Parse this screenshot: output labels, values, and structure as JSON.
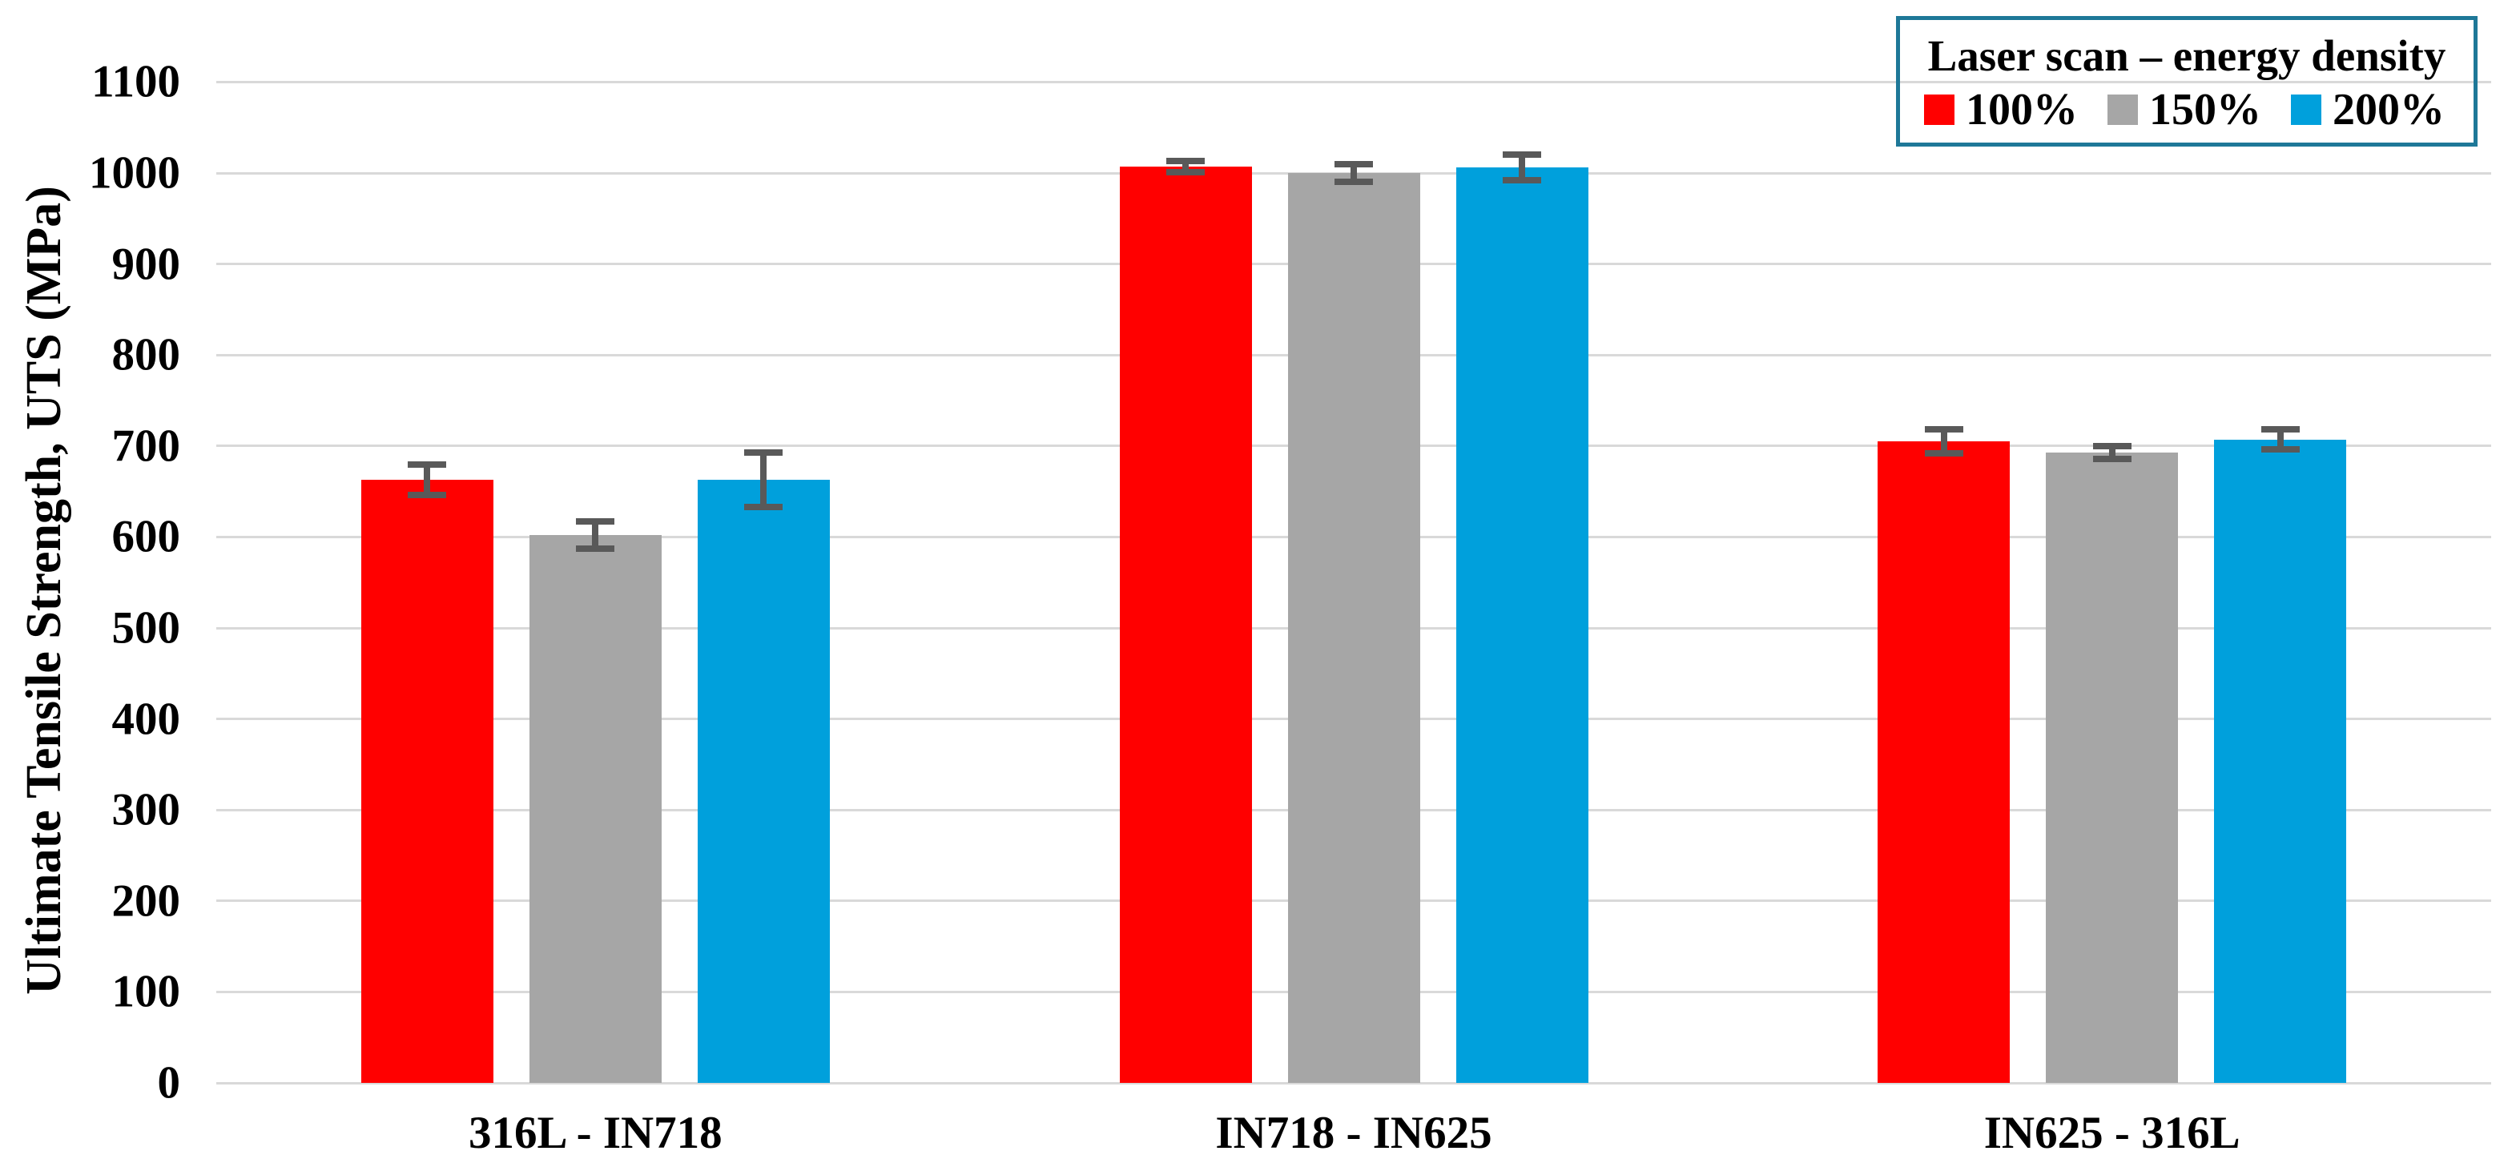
{
  "chart_data": {
    "type": "bar",
    "title": "",
    "xlabel": "",
    "ylabel": "Ultimate Tensile Strength, UTS (MPa)",
    "ylim": [
      0,
      1100
    ],
    "yticks": [
      0,
      100,
      200,
      300,
      400,
      500,
      600,
      700,
      800,
      900,
      1000,
      1100
    ],
    "grid": true,
    "grid_axis": "y",
    "legend_title": "Laser scan – energy density",
    "legend_position": "top-right",
    "categories": [
      "316L - IN718",
      "IN718 - IN625",
      "IN625 - 316L"
    ],
    "series": [
      {
        "name": "100%",
        "color": "#FF0000",
        "values": [
          663,
          1007,
          705
        ],
        "errors": [
          17,
          6,
          13
        ]
      },
      {
        "name": "150%",
        "color": "#A6A6A6",
        "values": [
          602,
          1000,
          693
        ],
        "errors": [
          15,
          10,
          7
        ]
      },
      {
        "name": "200%",
        "color": "#00A0DC",
        "values": [
          663,
          1006,
          707
        ],
        "errors": [
          30,
          14,
          11
        ]
      }
    ],
    "error_bars": true
  },
  "colors": {
    "background": "#FFFFFF",
    "gridline": "#D9D9D9",
    "error_bar": "#595959",
    "legend_border": "#1E7898",
    "text": "#000000"
  }
}
